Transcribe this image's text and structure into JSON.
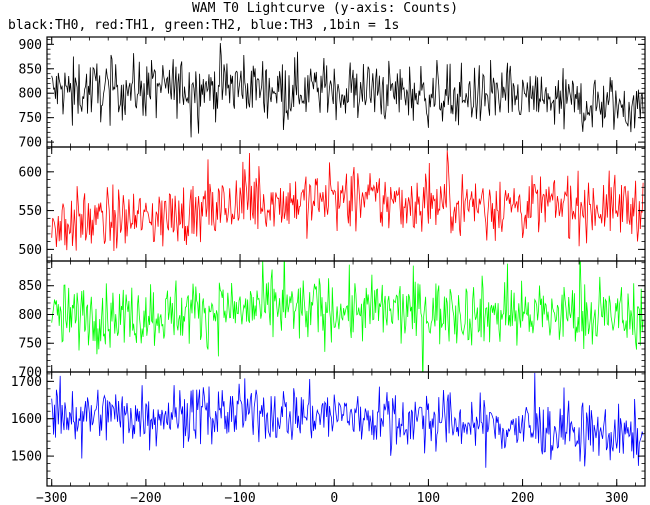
{
  "chart_data": {
    "type": "line",
    "title": "WAM T0 Lightcurve (y-axis: Counts)",
    "subtitle": "black:TH0, red:TH1, green:TH2, blue:TH3 ,1bin = 1s",
    "x_range": [
      -305,
      330
    ],
    "x_ticks": [
      -300,
      -200,
      -100,
      0,
      100,
      200,
      300
    ],
    "bin_seconds": 1,
    "panels": [
      {
        "name": "TH0",
        "color": "#000000",
        "ylim": [
          690,
          915
        ],
        "yticks": [
          700,
          750,
          800,
          850,
          900
        ],
        "trend_x": [
          -300,
          -200,
          -100,
          0,
          100,
          200,
          300,
          330
        ],
        "trend_y": [
          805,
          810,
          815,
          808,
          798,
          790,
          775,
          772
        ],
        "noise_sd": 30
      },
      {
        "name": "TH1",
        "color": "#ff0000",
        "ylim": [
          485,
          632
        ],
        "yticks": [
          500,
          550,
          600
        ],
        "trend_x": [
          -300,
          -200,
          -130,
          -100,
          0,
          100,
          200,
          300,
          330
        ],
        "trend_y": [
          533,
          540,
          548,
          560,
          565,
          560,
          558,
          555,
          555
        ],
        "noise_sd": 20
      },
      {
        "name": "TH2",
        "color": "#00ff00",
        "ylim": [
          700,
          893
        ],
        "yticks": [
          700,
          750,
          800,
          850
        ],
        "trend_x": [
          -300,
          -200,
          -100,
          0,
          100,
          200,
          300,
          330
        ],
        "trend_y": [
          795,
          800,
          810,
          808,
          805,
          802,
          795,
          800
        ],
        "noise_sd": 28
      },
      {
        "name": "TH3",
        "color": "#0000ff",
        "ylim": [
          1420,
          1725
        ],
        "yticks": [
          1500,
          1600,
          1700
        ],
        "trend_x": [
          -300,
          -200,
          -100,
          0,
          100,
          200,
          300,
          330
        ],
        "trend_y": [
          1610,
          1612,
          1615,
          1610,
          1595,
          1575,
          1555,
          1550
        ],
        "noise_sd": 38
      }
    ]
  }
}
